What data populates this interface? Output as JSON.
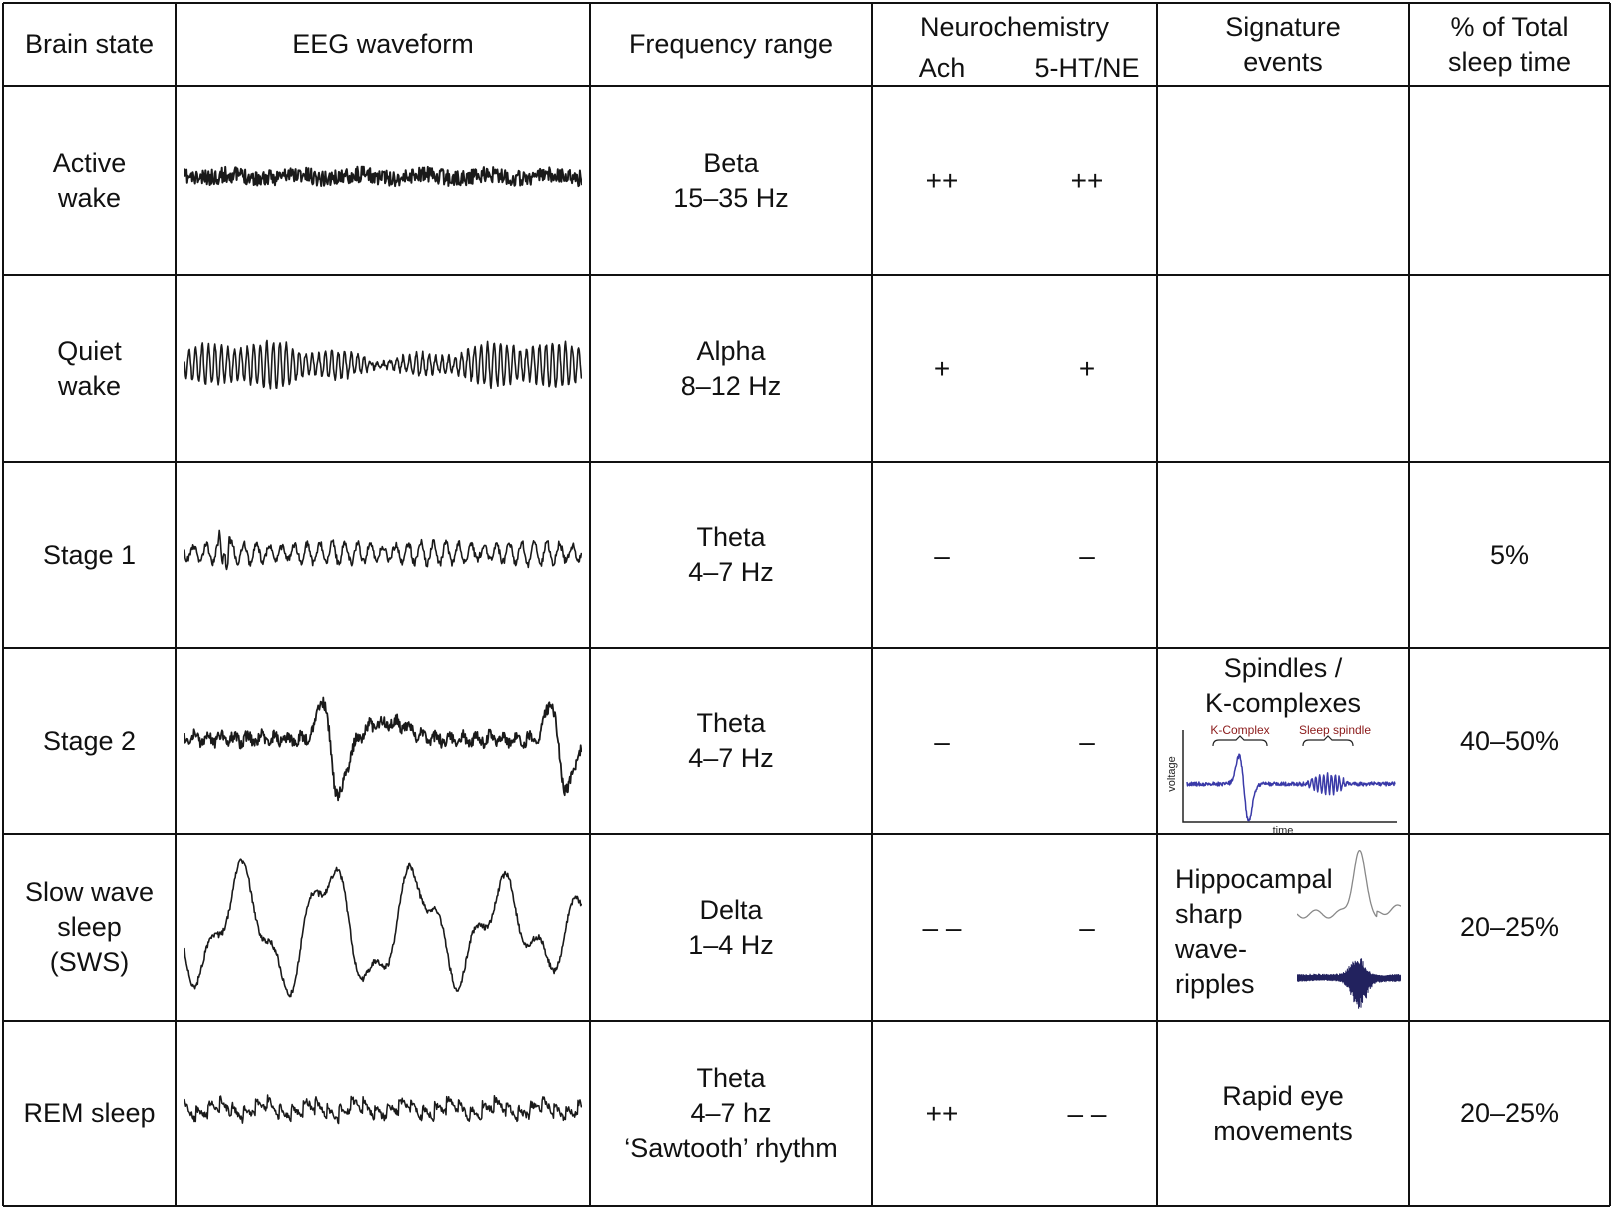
{
  "header": {
    "brain_state": "Brain state",
    "eeg": "EEG waveform",
    "frequency": "Frequency range",
    "neurochem": "Neurochemistry",
    "ach": "Ach",
    "ht_ne": "5-HT/NE",
    "signature_1": "Signature",
    "signature_2": "events",
    "pct_1": "% of Total",
    "pct_2": "sleep time"
  },
  "rows": [
    {
      "state": [
        "Active",
        "wake"
      ],
      "freq": [
        "Beta",
        "15–35 Hz"
      ],
      "ach": "++",
      "ht": "++",
      "signature": [],
      "pct": ""
    },
    {
      "state": [
        "Quiet",
        "wake"
      ],
      "freq": [
        "Alpha",
        "8–12 Hz"
      ],
      "ach": "+",
      "ht": "+",
      "signature": [],
      "pct": ""
    },
    {
      "state": [
        "Stage 1"
      ],
      "freq": [
        "Theta",
        "4–7 Hz"
      ],
      "ach": "–",
      "ht": "–",
      "signature": [],
      "pct": "5%"
    },
    {
      "state": [
        "Stage 2"
      ],
      "freq": [
        "Theta",
        "4–7 Hz"
      ],
      "ach": "–",
      "ht": "–",
      "signature": [
        "Spindles /",
        "K-complexes"
      ],
      "pct": "40–50%"
    },
    {
      "state": [
        "Slow wave",
        "sleep",
        "(SWS)"
      ],
      "freq": [
        "Delta",
        "1–4 Hz"
      ],
      "ach": "– –",
      "ht": "–",
      "signature": [
        "Hippocampal",
        "sharp",
        "wave-",
        "ripples"
      ],
      "pct": "20–25%"
    },
    {
      "state": [
        "REM sleep"
      ],
      "freq": [
        "Theta",
        "4–7 hz",
        "‘Sawtooth’ rhythm"
      ],
      "ach": "++",
      "ht": "– –",
      "signature": [
        "Rapid eye",
        "movements"
      ],
      "pct": "20–25%"
    }
  ],
  "kcomplex_plot": {
    "kcomplex_label": "K-Complex",
    "spindle_label": "Sleep spindle",
    "ylabel": "voltage",
    "xlabel": "time"
  },
  "colors": {
    "trace": "#1a1a1a",
    "blue_trace": "#3a3aa8",
    "annotation_red": "#8b1a1a",
    "gray_trace": "#888888",
    "grid": "#111111"
  }
}
